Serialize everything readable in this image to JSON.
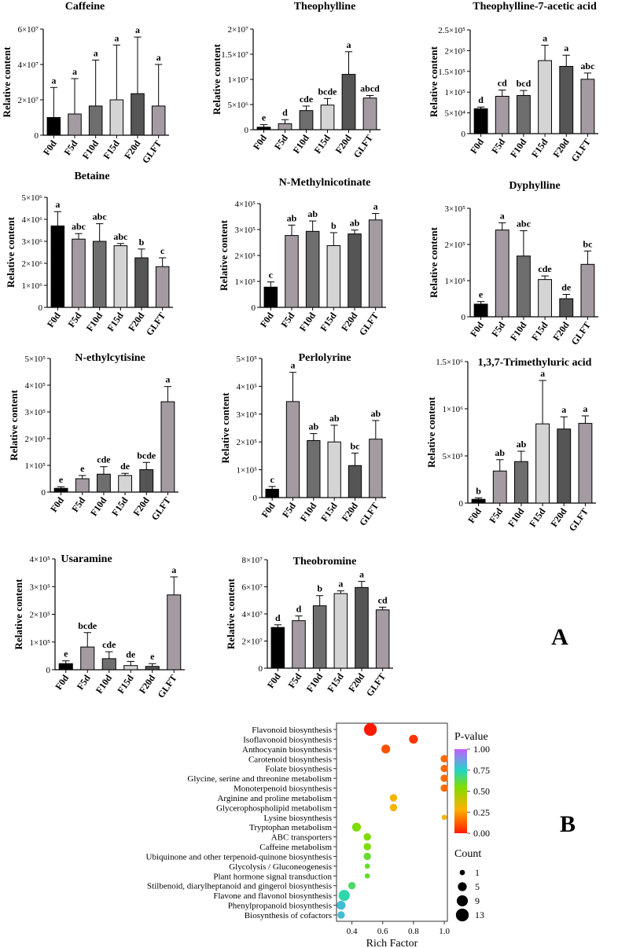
{
  "panel_a_label": "A",
  "panel_b_label": "B",
  "chart_data": [
    {
      "type": "bar",
      "title": "Caffeine",
      "ylabel": "Relative content",
      "categories": [
        "F0d",
        "F5d",
        "F10d",
        "F15d",
        "F20d",
        "GLFT"
      ],
      "values": [
        10000000,
        12000000,
        16500000,
        20000000,
        23500000,
        16500000
      ],
      "errors": [
        17000000,
        20000000,
        26000000,
        31000000,
        32000000,
        23500000
      ],
      "letters": [
        "a",
        "a",
        "a",
        "a",
        "a",
        "a"
      ],
      "ylim": [
        0,
        60000000
      ],
      "ticks": [
        {
          "v": 0,
          "label": "0"
        },
        {
          "v": 20000000,
          "label": "2×10⁷"
        },
        {
          "v": 40000000,
          "label": "4×10⁷"
        },
        {
          "v": 60000000,
          "label": "6×10⁷"
        }
      ]
    },
    {
      "type": "bar",
      "title": "Theophylline",
      "ylabel": "Relative content",
      "categories": [
        "F0d",
        "F5d",
        "F10d",
        "F15d",
        "F20d",
        "GLFT"
      ],
      "values": [
        500000,
        1200000,
        3800000,
        4900000,
        11000000,
        6300000
      ],
      "errors": [
        500000,
        800000,
        900000,
        1300000,
        4500000,
        500000
      ],
      "letters": [
        "e",
        "d",
        "cde",
        "bcde",
        "a",
        "abcd"
      ],
      "ylim": [
        0,
        20000000
      ],
      "ticks": [
        {
          "v": 0,
          "label": "0"
        },
        {
          "v": 5000000,
          "label": "5×10⁶"
        },
        {
          "v": 10000000,
          "label": "1×10⁷"
        },
        {
          "v": 15000000,
          "label": "1.5×10⁷"
        },
        {
          "v": 20000000,
          "label": "2×10⁷"
        }
      ]
    },
    {
      "type": "bar",
      "title": "Theophylline-7-acetic acid",
      "ylabel": "Relative content",
      "categories": [
        "F0d",
        "F5d",
        "F10d",
        "F15d",
        "F20d",
        "GLFT"
      ],
      "values": [
        60000,
        90000,
        92000,
        176000,
        162000,
        131000
      ],
      "errors": [
        4000,
        15000,
        12000,
        37000,
        27000,
        15000
      ],
      "letters": [
        "d",
        "cd",
        "bcd",
        "a",
        "a",
        "abc"
      ],
      "ylim": [
        0,
        250000
      ],
      "ticks": [
        {
          "v": 0,
          "label": "0"
        },
        {
          "v": 50000,
          "label": "5×10⁴"
        },
        {
          "v": 100000,
          "label": "1×10⁵"
        },
        {
          "v": 150000,
          "label": "1.5×10⁵"
        },
        {
          "v": 200000,
          "label": "2×10⁵"
        },
        {
          "v": 250000,
          "label": "2.5×10⁵"
        }
      ]
    },
    {
      "type": "bar",
      "title": "Betaine",
      "ylabel": "Relative content",
      "categories": [
        "F0d",
        "F5d",
        "F10d",
        "F15d",
        "F20d",
        "GLFT"
      ],
      "values": [
        3700000,
        3100000,
        3000000,
        2800000,
        2250000,
        1850000
      ],
      "errors": [
        650000,
        250000,
        800000,
        100000,
        400000,
        400000
      ],
      "letters": [
        "a",
        "abc",
        "abc",
        "abc",
        "b",
        "c"
      ],
      "ylim": [
        0,
        5000000
      ],
      "ticks": [
        {
          "v": 0,
          "label": "0"
        },
        {
          "v": 1000000,
          "label": "1×10⁶"
        },
        {
          "v": 2000000,
          "label": "2×10⁶"
        },
        {
          "v": 3000000,
          "label": "3×10⁶"
        },
        {
          "v": 4000000,
          "label": "4×10⁶"
        },
        {
          "v": 5000000,
          "label": "5×10⁶"
        }
      ]
    },
    {
      "type": "bar",
      "title": "N-Methylnicotinate",
      "ylabel": "Relative content",
      "categories": [
        "F0d",
        "F5d",
        "F10d",
        "F15d",
        "F20d",
        "GLFT"
      ],
      "values": [
        78000,
        277000,
        293000,
        238000,
        283000,
        337000
      ],
      "errors": [
        20000,
        40000,
        40000,
        50000,
        15000,
        25000
      ],
      "letters": [
        "c",
        "ab",
        "ab",
        "b",
        "ab",
        "a"
      ],
      "ylim": [
        0,
        400000
      ],
      "ticks": [
        {
          "v": 0,
          "label": "0"
        },
        {
          "v": 100000,
          "label": "1×10⁵"
        },
        {
          "v": 200000,
          "label": "2×10⁵"
        },
        {
          "v": 300000,
          "label": "3×10⁵"
        },
        {
          "v": 400000,
          "label": "4×10⁵"
        }
      ]
    },
    {
      "type": "bar",
      "title": "Dyphylline",
      "ylabel": "Relative content",
      "categories": [
        "F0d",
        "F5d",
        "F10d",
        "F15d",
        "F20d",
        "GLFT"
      ],
      "values": [
        35000,
        240000,
        168000,
        103000,
        50000,
        145000
      ],
      "errors": [
        7000,
        20000,
        70000,
        10000,
        12000,
        37000
      ],
      "letters": [
        "e",
        "a",
        "abc",
        "cde",
        "de",
        "bc"
      ],
      "ylim": [
        0,
        300000
      ],
      "ticks": [
        {
          "v": 0,
          "label": "0"
        },
        {
          "v": 100000,
          "label": "1×10⁵"
        },
        {
          "v": 200000,
          "label": "2×10⁵"
        },
        {
          "v": 300000,
          "label": "3×10⁵"
        }
      ]
    },
    {
      "type": "bar",
      "title": "N-ethylcytisine",
      "ylabel": "Relative content",
      "categories": [
        "F0d",
        "F5d",
        "F10d",
        "F15d",
        "F20d",
        "GLFT"
      ],
      "values": [
        14000,
        50000,
        67000,
        62000,
        84000,
        338000
      ],
      "errors": [
        6000,
        12000,
        28000,
        8000,
        27000,
        57000
      ],
      "letters": [
        "e",
        "e",
        "cde",
        "de",
        "bcde",
        "a"
      ],
      "ylim": [
        0,
        500000
      ],
      "ticks": [
        {
          "v": 0,
          "label": "0"
        },
        {
          "v": 100000,
          "label": "1×10⁵"
        },
        {
          "v": 200000,
          "label": "2×10⁵"
        },
        {
          "v": 300000,
          "label": "3×10⁵"
        },
        {
          "v": 400000,
          "label": "4×10⁵"
        },
        {
          "v": 500000,
          "label": "5×10⁵"
        }
      ]
    },
    {
      "type": "bar",
      "title": "Perlolyrine",
      "ylabel": "Relative content",
      "categories": [
        "F0d",
        "F5d",
        "F10d",
        "F15d",
        "F20d",
        "GLFT"
      ],
      "values": [
        30000,
        345000,
        205000,
        200000,
        115000,
        210000
      ],
      "errors": [
        10000,
        105000,
        25000,
        60000,
        45000,
        67000
      ],
      "letters": [
        "c",
        "a",
        "ab",
        "ab",
        "bc",
        "ab"
      ],
      "ylim": [
        0,
        500000
      ],
      "ticks": [
        {
          "v": 0,
          "label": "0"
        },
        {
          "v": 100000,
          "label": "1×10⁵"
        },
        {
          "v": 200000,
          "label": "2×10⁵"
        },
        {
          "v": 300000,
          "label": "3×10⁵"
        },
        {
          "v": 400000,
          "label": "4×10⁵"
        },
        {
          "v": 500000,
          "label": "5×10⁵"
        }
      ]
    },
    {
      "type": "bar",
      "title": "1,3,7-Trimethyluric acid",
      "ylabel": "Relative content",
      "categories": [
        "F0d",
        "F5d",
        "F10d",
        "F15d",
        "F20d",
        "GLFT"
      ],
      "values": [
        40000,
        340000,
        440000,
        840000,
        785000,
        845000
      ],
      "errors": [
        15000,
        120000,
        110000,
        460000,
        130000,
        80000
      ],
      "letters": [
        "b",
        "ab",
        "ab",
        "a",
        "a",
        "a"
      ],
      "ylim": [
        0,
        1500000
      ],
      "ticks": [
        {
          "v": 0,
          "label": "0"
        },
        {
          "v": 500000,
          "label": "5×10⁵"
        },
        {
          "v": 1000000,
          "label": "1×10⁶"
        },
        {
          "v": 1500000,
          "label": "1.5×10⁶"
        }
      ]
    },
    {
      "type": "bar",
      "title": "Usaramine",
      "ylabel": "Relative content",
      "categories": [
        "F0d",
        "F5d",
        "F10d",
        "F15d",
        "F20d",
        "GLFT"
      ],
      "values": [
        22000,
        82000,
        40000,
        15000,
        12000,
        270000
      ],
      "errors": [
        10000,
        52000,
        25000,
        15000,
        10000,
        65000
      ],
      "letters": [
        "e",
        "bcde",
        "cde",
        "de",
        "e",
        "a"
      ],
      "ylim": [
        0,
        400000
      ],
      "ticks": [
        {
          "v": 0,
          "label": "0"
        },
        {
          "v": 100000,
          "label": "1×10⁵"
        },
        {
          "v": 200000,
          "label": "2×10⁵"
        },
        {
          "v": 300000,
          "label": "3×10⁵"
        },
        {
          "v": 400000,
          "label": "4×10⁵"
        }
      ]
    },
    {
      "type": "bar",
      "title": "Theobromine",
      "ylabel": "Relative content",
      "categories": [
        "F0d",
        "F5d",
        "F10d",
        "F15d",
        "F20d",
        "GLFT"
      ],
      "values": [
        30000000,
        35000000,
        46000000,
        55000000,
        59500000,
        43000000
      ],
      "errors": [
        2000000,
        3500000,
        7500000,
        2000000,
        4500000,
        2000000
      ],
      "letters": [
        "d",
        "d",
        "b",
        "a",
        "a",
        "cd"
      ],
      "ylim": [
        0,
        80000000
      ],
      "ticks": [
        {
          "v": 0,
          "label": "0"
        },
        {
          "v": 20000000,
          "label": "2×10⁷"
        },
        {
          "v": 40000000,
          "label": "4×10⁷"
        },
        {
          "v": 60000000,
          "label": "6×10⁷"
        },
        {
          "v": 80000000,
          "label": "8×10⁷"
        }
      ]
    },
    {
      "type": "scatter",
      "xlabel": "Rich Factor",
      "xticks": [
        0.4,
        0.6,
        0.8,
        1.0
      ],
      "xtick_labels": [
        "0.4",
        "0.6",
        "0.8",
        "1.0"
      ],
      "xlim": [
        0.3,
        1.02
      ],
      "legend_title_p": "P-value",
      "p_ticks": [
        "1.00",
        "0.75",
        "0.50",
        "0.25",
        "0.00"
      ],
      "legend_title_count": "Count",
      "count_levels": [
        1,
        5,
        9,
        13
      ],
      "pathways": [
        {
          "name": "Flavonoid biosynthesis",
          "x": 0.52,
          "count": 13,
          "p": 0.0
        },
        {
          "name": "Isoflavonoid biosynthesis",
          "x": 0.8,
          "count": 5,
          "p": 0.05
        },
        {
          "name": "Anthocyanin biosynthesis",
          "x": 0.62,
          "count": 5,
          "p": 0.1
        },
        {
          "name": "Carotenoid biosynthesis",
          "x": 1.0,
          "count": 3,
          "p": 0.15
        },
        {
          "name": "Folate biosynthesis",
          "x": 1.0,
          "count": 3,
          "p": 0.15
        },
        {
          "name": "Glycine, serine and threonine metabolism",
          "x": 1.0,
          "count": 3,
          "p": 0.15
        },
        {
          "name": "Monoterpenoid biosynthesis",
          "x": 1.0,
          "count": 3,
          "p": 0.15
        },
        {
          "name": "Arginine and proline metabolism",
          "x": 0.67,
          "count": 3,
          "p": 0.3
        },
        {
          "name": "Glycerophospholipid metabolism",
          "x": 0.67,
          "count": 3,
          "p": 0.3
        },
        {
          "name": "Lysine biosynthesis",
          "x": 1.0,
          "count": 1,
          "p": 0.3
        },
        {
          "name": "Tryptophan metabolism",
          "x": 0.43,
          "count": 5,
          "p": 0.55
        },
        {
          "name": "ABC transporters",
          "x": 0.5,
          "count": 3,
          "p": 0.55
        },
        {
          "name": "Caffeine metabolism",
          "x": 0.5,
          "count": 3,
          "p": 0.55
        },
        {
          "name": "Ubiquinone and other terpenoid-quinone biosynthesis",
          "x": 0.5,
          "count": 3,
          "p": 0.6
        },
        {
          "name": "Glycolysis / Gluconeogenesis",
          "x": 0.5,
          "count": 1,
          "p": 0.6
        },
        {
          "name": "Plant hormone signal transduction",
          "x": 0.5,
          "count": 1,
          "p": 0.6
        },
        {
          "name": "Stilbenoid, diarylheptanoid and gingerol biosynthesis",
          "x": 0.4,
          "count": 3,
          "p": 0.65
        },
        {
          "name": "Flavone and flavonol biosynthesis",
          "x": 0.35,
          "count": 9,
          "p": 0.72
        },
        {
          "name": "Phenylpropanoid biosynthesis",
          "x": 0.33,
          "count": 5,
          "p": 0.8
        },
        {
          "name": "Biosynthesis of cofactors",
          "x": 0.33,
          "count": 3,
          "p": 0.8
        }
      ]
    }
  ]
}
